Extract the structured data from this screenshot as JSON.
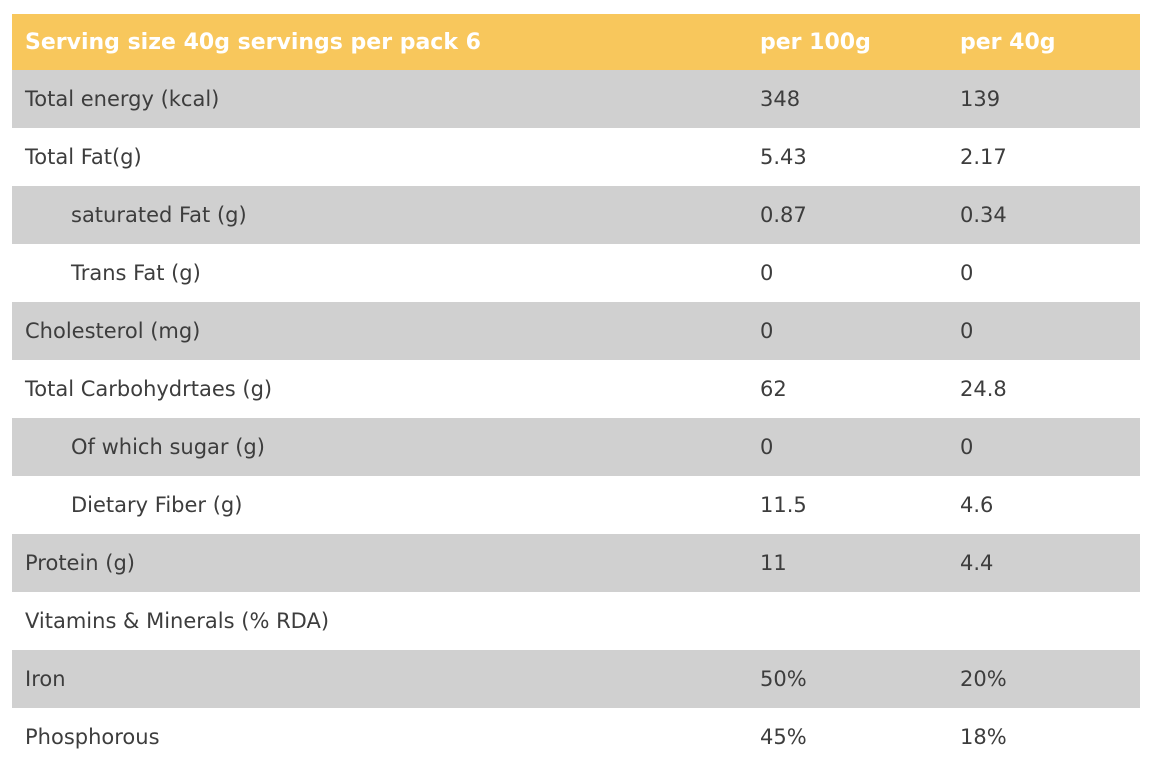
{
  "chart_data": {
    "type": "table",
    "title": "Serving size 40g servings per pack 6",
    "columns": [
      "",
      "per 100g",
      "per 40g"
    ],
    "rows": [
      [
        "Total energy (kcal)",
        "348",
        "139"
      ],
      [
        "Total Fat(g)",
        "5.43",
        "2.17"
      ],
      [
        "saturated Fat (g)",
        "0.87",
        "0.34"
      ],
      [
        "Trans Fat (g)",
        "0",
        "0"
      ],
      [
        "Cholesterol (mg)",
        "0",
        "0"
      ],
      [
        "Total Carbohydrtaes (g)",
        "62",
        "24.8"
      ],
      [
        "Of which sugar (g)",
        "0",
        "0"
      ],
      [
        "Dietary Fiber (g)",
        "11.5",
        "4.6"
      ],
      [
        "Protein (g)",
        "11",
        "4.4"
      ],
      [
        "Vitamins & Minerals (% RDA)",
        "",
        ""
      ],
      [
        "Iron",
        "50%",
        "20%"
      ],
      [
        "Phosphorous",
        "45%",
        "18%"
      ]
    ]
  },
  "table": {
    "header": {
      "label": "Serving size 40g servings per pack 6",
      "col_per_100g": "per 100g",
      "col_per_40g": "per 40g"
    },
    "rows": [
      {
        "label": "Total energy (kcal)",
        "per_100g": "348",
        "per_40g": "139",
        "shaded": true,
        "indent": false
      },
      {
        "label": "Total Fat(g)",
        "per_100g": "5.43",
        "per_40g": "2.17",
        "shaded": false,
        "indent": false
      },
      {
        "label": "saturated Fat (g)",
        "per_100g": "0.87",
        "per_40g": "0.34",
        "shaded": true,
        "indent": true
      },
      {
        "label": "Trans Fat (g)",
        "per_100g": "0",
        "per_40g": "0",
        "shaded": false,
        "indent": true
      },
      {
        "label": "Cholesterol (mg)",
        "per_100g": "0",
        "per_40g": "0",
        "shaded": true,
        "indent": false
      },
      {
        "label": "Total Carbohydrtaes (g)",
        "per_100g": "62",
        "per_40g": "24.8",
        "shaded": false,
        "indent": false
      },
      {
        "label": "Of which sugar (g)",
        "per_100g": "0",
        "per_40g": "0",
        "shaded": true,
        "indent": true
      },
      {
        "label": "Dietary Fiber (g)",
        "per_100g": "11.5",
        "per_40g": "4.6",
        "shaded": false,
        "indent": true
      },
      {
        "label": "Protein (g)",
        "per_100g": "11",
        "per_40g": "4.4",
        "shaded": true,
        "indent": false
      },
      {
        "label": "Vitamins & Minerals (% RDA)",
        "per_100g": "",
        "per_40g": "",
        "shaded": false,
        "indent": false
      },
      {
        "label": "Iron",
        "per_100g": "50%",
        "per_40g": "20%",
        "shaded": true,
        "indent": false
      },
      {
        "label": "Phosphorous",
        "per_100g": "45%",
        "per_40g": "18%",
        "shaded": false,
        "indent": false
      }
    ],
    "colors": {
      "header_bg": "#f8c75c",
      "header_text": "#ffffff",
      "shaded_row_bg": "#d0d0d0",
      "row_text": "#3d3d3d",
      "plain_row_bg": "#ffffff"
    }
  }
}
